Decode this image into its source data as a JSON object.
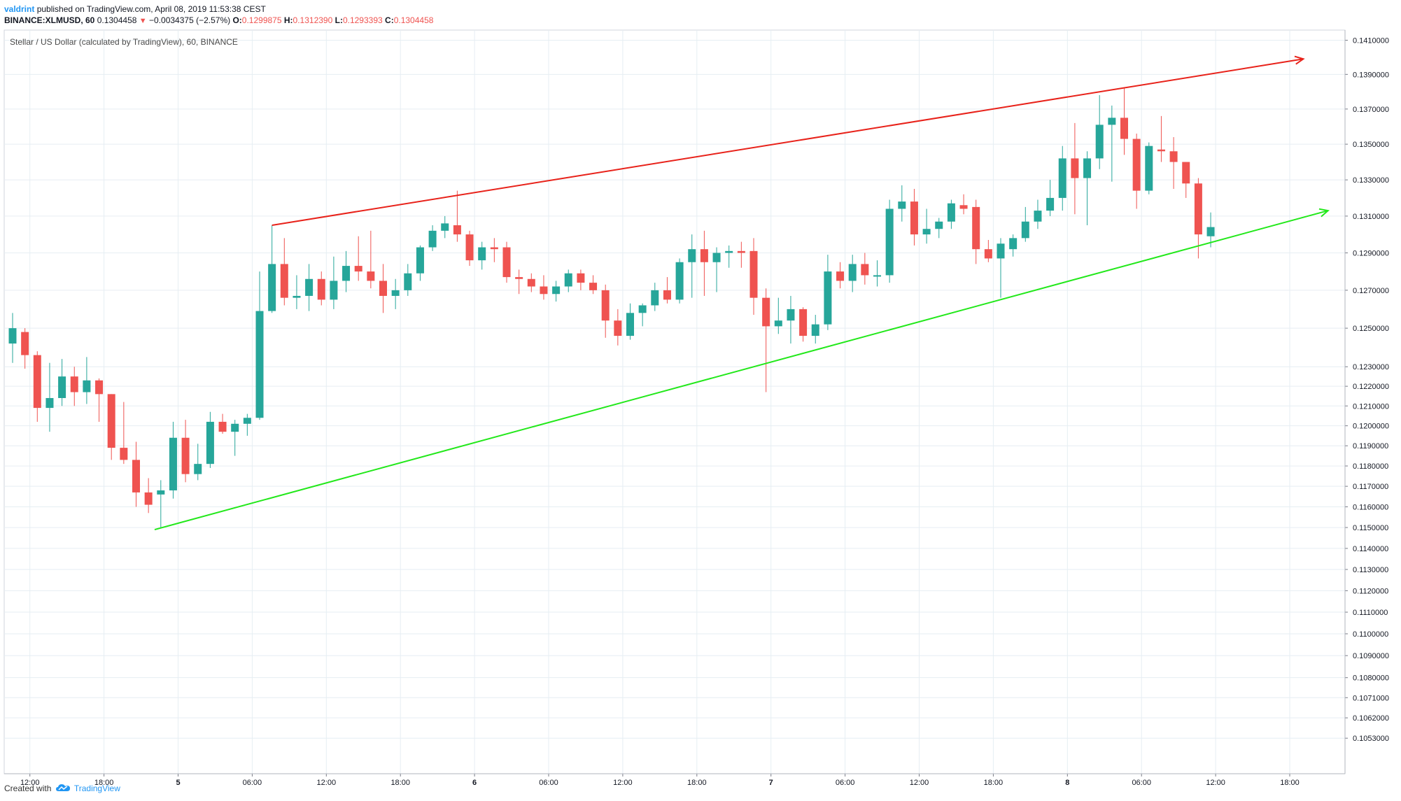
{
  "header": {
    "author": "valdrint",
    "published_text": "published on TradingView.com, April 08, 2019 11:53:38 CEST",
    "symbol_interval": "BINANCE:XLMUSD, 60",
    "last": "0.1304458",
    "change": "−0.0034375 (−2.57%)",
    "open_label": "O:",
    "open": "0.1299875",
    "high_label": "H:",
    "high": "0.1312390",
    "low_label": "L:",
    "low": "0.1293393",
    "close_label": "C:",
    "close": "0.1304458"
  },
  "footer": {
    "created_with": "Created with",
    "brand": "TradingView"
  },
  "chart_data": {
    "type": "candlestick",
    "title": "Stellar / US Dollar (calculated by TradingView), 60, BINANCE",
    "y_axis_scale": "log",
    "ylim": [
      0.1046,
      0.1416
    ],
    "y_tick_labels": [
      "0.1410000",
      "0.1390000",
      "0.1370000",
      "0.1350000",
      "0.1330000",
      "0.1310000",
      "0.1290000",
      "0.1270000",
      "0.1250000",
      "0.1230000",
      "0.1220000",
      "0.1210000",
      "0.1200000",
      "0.1190000",
      "0.1180000",
      "0.1170000",
      "0.1160000",
      "0.1150000",
      "0.1140000",
      "0.1130000",
      "0.1120000",
      "0.1110000",
      "0.1100000",
      "0.1090000",
      "0.1080000",
      "0.1071000",
      "0.1062000",
      "0.1053000"
    ],
    "x_tick_labels": [
      "12:00",
      "18:00",
      "5",
      "06:00",
      "12:00",
      "18:00",
      "6",
      "06:00",
      "12:00",
      "18:00",
      "7",
      "06:00",
      "12:00",
      "18:00",
      "8",
      "06:00",
      "12:00",
      "18:00"
    ],
    "candles": [
      {
        "o": 0.1242,
        "h": 0.1258,
        "l": 0.1232,
        "c": 0.125
      },
      {
        "o": 0.1248,
        "h": 0.125,
        "l": 0.1229,
        "c": 0.1236
      },
      {
        "o": 0.1236,
        "h": 0.1238,
        "l": 0.1202,
        "c": 0.1209
      },
      {
        "o": 0.1209,
        "h": 0.1232,
        "l": 0.1197,
        "c": 0.1214
      },
      {
        "o": 0.1214,
        "h": 0.1234,
        "l": 0.121,
        "c": 0.1225
      },
      {
        "o": 0.1225,
        "h": 0.123,
        "l": 0.121,
        "c": 0.1217
      },
      {
        "o": 0.1217,
        "h": 0.1235,
        "l": 0.1211,
        "c": 0.1223
      },
      {
        "o": 0.1223,
        "h": 0.1224,
        "l": 0.1202,
        "c": 0.1216
      },
      {
        "o": 0.1216,
        "h": 0.1216,
        "l": 0.1183,
        "c": 0.1189
      },
      {
        "o": 0.1189,
        "h": 0.1212,
        "l": 0.1181,
        "c": 0.1183
      },
      {
        "o": 0.1183,
        "h": 0.1192,
        "l": 0.116,
        "c": 0.1167
      },
      {
        "o": 0.1167,
        "h": 0.1174,
        "l": 0.1157,
        "c": 0.1161
      },
      {
        "o": 0.1166,
        "h": 0.1173,
        "l": 0.115,
        "c": 0.1168
      },
      {
        "o": 0.1168,
        "h": 0.1202,
        "l": 0.1164,
        "c": 0.1194
      },
      {
        "o": 0.1194,
        "h": 0.1203,
        "l": 0.1172,
        "c": 0.1176
      },
      {
        "o": 0.1176,
        "h": 0.1191,
        "l": 0.1173,
        "c": 0.1181
      },
      {
        "o": 0.1181,
        "h": 0.1207,
        "l": 0.1179,
        "c": 0.1202
      },
      {
        "o": 0.1202,
        "h": 0.1206,
        "l": 0.1196,
        "c": 0.1197
      },
      {
        "o": 0.1197,
        "h": 0.1203,
        "l": 0.1185,
        "c": 0.1201
      },
      {
        "o": 0.1201,
        "h": 0.1206,
        "l": 0.1195,
        "c": 0.1204
      },
      {
        "o": 0.1204,
        "h": 0.128,
        "l": 0.1203,
        "c": 0.1259
      },
      {
        "o": 0.1259,
        "h": 0.1305,
        "l": 0.1258,
        "c": 0.1284
      },
      {
        "o": 0.1284,
        "h": 0.1298,
        "l": 0.1262,
        "c": 0.1266
      },
      {
        "o": 0.1266,
        "h": 0.1278,
        "l": 0.126,
        "c": 0.1267
      },
      {
        "o": 0.1267,
        "h": 0.1284,
        "l": 0.1259,
        "c": 0.1276
      },
      {
        "o": 0.1276,
        "h": 0.128,
        "l": 0.1262,
        "c": 0.1265
      },
      {
        "o": 0.1265,
        "h": 0.1288,
        "l": 0.126,
        "c": 0.1275
      },
      {
        "o": 0.1275,
        "h": 0.1291,
        "l": 0.1269,
        "c": 0.1283
      },
      {
        "o": 0.1283,
        "h": 0.1299,
        "l": 0.1275,
        "c": 0.128
      },
      {
        "o": 0.128,
        "h": 0.1302,
        "l": 0.1271,
        "c": 0.1275
      },
      {
        "o": 0.1275,
        "h": 0.1284,
        "l": 0.1258,
        "c": 0.1267
      },
      {
        "o": 0.1267,
        "h": 0.1276,
        "l": 0.126,
        "c": 0.127
      },
      {
        "o": 0.127,
        "h": 0.1284,
        "l": 0.1267,
        "c": 0.1279
      },
      {
        "o": 0.1279,
        "h": 0.1294,
        "l": 0.1275,
        "c": 0.1293
      },
      {
        "o": 0.1293,
        "h": 0.1305,
        "l": 0.1291,
        "c": 0.1302
      },
      {
        "o": 0.1302,
        "h": 0.131,
        "l": 0.1298,
        "c": 0.1306
      },
      {
        "o": 0.1305,
        "h": 0.1324,
        "l": 0.1296,
        "c": 0.13
      },
      {
        "o": 0.13,
        "h": 0.1302,
        "l": 0.1283,
        "c": 0.1286
      },
      {
        "o": 0.1286,
        "h": 0.1296,
        "l": 0.1281,
        "c": 0.1293
      },
      {
        "o": 0.1293,
        "h": 0.1298,
        "l": 0.1285,
        "c": 0.1292
      },
      {
        "o": 0.1293,
        "h": 0.1296,
        "l": 0.1274,
        "c": 0.1277
      },
      {
        "o": 0.1277,
        "h": 0.1281,
        "l": 0.1268,
        "c": 0.1276
      },
      {
        "o": 0.1276,
        "h": 0.1279,
        "l": 0.1269,
        "c": 0.1272
      },
      {
        "o": 0.1272,
        "h": 0.1278,
        "l": 0.1265,
        "c": 0.1268
      },
      {
        "o": 0.1268,
        "h": 0.1275,
        "l": 0.1264,
        "c": 0.1272
      },
      {
        "o": 0.1272,
        "h": 0.1281,
        "l": 0.1269,
        "c": 0.1279
      },
      {
        "o": 0.1279,
        "h": 0.1281,
        "l": 0.127,
        "c": 0.1274
      },
      {
        "o": 0.1274,
        "h": 0.1278,
        "l": 0.1268,
        "c": 0.127
      },
      {
        "o": 0.127,
        "h": 0.1273,
        "l": 0.1245,
        "c": 0.1254
      },
      {
        "o": 0.1254,
        "h": 0.126,
        "l": 0.1241,
        "c": 0.1246
      },
      {
        "o": 0.1246,
        "h": 0.1263,
        "l": 0.1244,
        "c": 0.1258
      },
      {
        "o": 0.1258,
        "h": 0.1263,
        "l": 0.1251,
        "c": 0.1262
      },
      {
        "o": 0.1262,
        "h": 0.1274,
        "l": 0.1259,
        "c": 0.127
      },
      {
        "o": 0.127,
        "h": 0.1277,
        "l": 0.1263,
        "c": 0.1265
      },
      {
        "o": 0.1265,
        "h": 0.1287,
        "l": 0.1263,
        "c": 0.1285
      },
      {
        "o": 0.1285,
        "h": 0.13,
        "l": 0.1266,
        "c": 0.1292
      },
      {
        "o": 0.1292,
        "h": 0.1302,
        "l": 0.1267,
        "c": 0.1285
      },
      {
        "o": 0.1285,
        "h": 0.1293,
        "l": 0.1269,
        "c": 0.129
      },
      {
        "o": 0.129,
        "h": 0.1294,
        "l": 0.1282,
        "c": 0.1291
      },
      {
        "o": 0.1291,
        "h": 0.1296,
        "l": 0.1282,
        "c": 0.129
      },
      {
        "o": 0.1291,
        "h": 0.1298,
        "l": 0.1257,
        "c": 0.1266
      },
      {
        "o": 0.1266,
        "h": 0.1271,
        "l": 0.1217,
        "c": 0.1251
      },
      {
        "o": 0.1251,
        "h": 0.1266,
        "l": 0.1247,
        "c": 0.1254
      },
      {
        "o": 0.1254,
        "h": 0.1267,
        "l": 0.1242,
        "c": 0.126
      },
      {
        "o": 0.126,
        "h": 0.1261,
        "l": 0.1243,
        "c": 0.1246
      },
      {
        "o": 0.1246,
        "h": 0.1257,
        "l": 0.1242,
        "c": 0.1252
      },
      {
        "o": 0.1252,
        "h": 0.1289,
        "l": 0.1249,
        "c": 0.128
      },
      {
        "o": 0.128,
        "h": 0.1285,
        "l": 0.1271,
        "c": 0.1275
      },
      {
        "o": 0.1275,
        "h": 0.1289,
        "l": 0.1269,
        "c": 0.1284
      },
      {
        "o": 0.1284,
        "h": 0.129,
        "l": 0.1273,
        "c": 0.1278
      },
      {
        "o": 0.1278,
        "h": 0.1286,
        "l": 0.1272,
        "c": 0.1278
      },
      {
        "o": 0.1278,
        "h": 0.1319,
        "l": 0.1274,
        "c": 0.1314
      },
      {
        "o": 0.1314,
        "h": 0.1327,
        "l": 0.1307,
        "c": 0.1318
      },
      {
        "o": 0.1318,
        "h": 0.1325,
        "l": 0.1294,
        "c": 0.13
      },
      {
        "o": 0.13,
        "h": 0.1314,
        "l": 0.1295,
        "c": 0.1303
      },
      {
        "o": 0.1303,
        "h": 0.1309,
        "l": 0.1298,
        "c": 0.1307
      },
      {
        "o": 0.1307,
        "h": 0.1319,
        "l": 0.1303,
        "c": 0.1317
      },
      {
        "o": 0.1316,
        "h": 0.1322,
        "l": 0.1311,
        "c": 0.1314
      },
      {
        "o": 0.1315,
        "h": 0.1319,
        "l": 0.1284,
        "c": 0.1292
      },
      {
        "o": 0.1292,
        "h": 0.1297,
        "l": 0.1285,
        "c": 0.1287
      },
      {
        "o": 0.1287,
        "h": 0.1298,
        "l": 0.1266,
        "c": 0.1295
      },
      {
        "o": 0.1292,
        "h": 0.13,
        "l": 0.1288,
        "c": 0.1298
      },
      {
        "o": 0.1298,
        "h": 0.1315,
        "l": 0.1296,
        "c": 0.1307
      },
      {
        "o": 0.1307,
        "h": 0.1319,
        "l": 0.1303,
        "c": 0.1313
      },
      {
        "o": 0.1313,
        "h": 0.133,
        "l": 0.131,
        "c": 0.132
      },
      {
        "o": 0.132,
        "h": 0.1349,
        "l": 0.1313,
        "c": 0.1342
      },
      {
        "o": 0.1342,
        "h": 0.1362,
        "l": 0.1311,
        "c": 0.1331
      },
      {
        "o": 0.1331,
        "h": 0.1346,
        "l": 0.1305,
        "c": 0.1342
      },
      {
        "o": 0.1342,
        "h": 0.1378,
        "l": 0.1336,
        "c": 0.1361
      },
      {
        "o": 0.1361,
        "h": 0.1372,
        "l": 0.1329,
        "c": 0.1365
      },
      {
        "o": 0.1365,
        "h": 0.1382,
        "l": 0.1344,
        "c": 0.1353
      },
      {
        "o": 0.1353,
        "h": 0.1356,
        "l": 0.1314,
        "c": 0.1324
      },
      {
        "o": 0.1324,
        "h": 0.1351,
        "l": 0.1322,
        "c": 0.1349
      },
      {
        "o": 0.1347,
        "h": 0.1366,
        "l": 0.134,
        "c": 0.1346
      },
      {
        "o": 0.1346,
        "h": 0.1354,
        "l": 0.1325,
        "c": 0.134
      },
      {
        "o": 0.134,
        "h": 0.134,
        "l": 0.132,
        "c": 0.1328
      },
      {
        "o": 0.1328,
        "h": 0.1331,
        "l": 0.1287,
        "c": 0.13
      },
      {
        "o": 0.1299,
        "h": 0.1312,
        "l": 0.1293,
        "c": 0.1304
      }
    ],
    "trendlines": [
      {
        "name": "resistance",
        "color": "#e8221a",
        "arrow": true,
        "from": {
          "i": 21,
          "y": 0.1305
        },
        "to": {
          "i": 104.5,
          "y": 0.1399
        }
      },
      {
        "name": "support",
        "color": "#22e81a",
        "arrow": true,
        "from": {
          "i": 11.5,
          "y": 0.1149
        },
        "to": {
          "i": 106.5,
          "y": 0.1313
        }
      }
    ],
    "colors": {
      "up": "#26a69a",
      "down": "#ef5350",
      "grid": "#e6eef3",
      "axis": "#787b86"
    },
    "grid": true,
    "legend": "none"
  }
}
